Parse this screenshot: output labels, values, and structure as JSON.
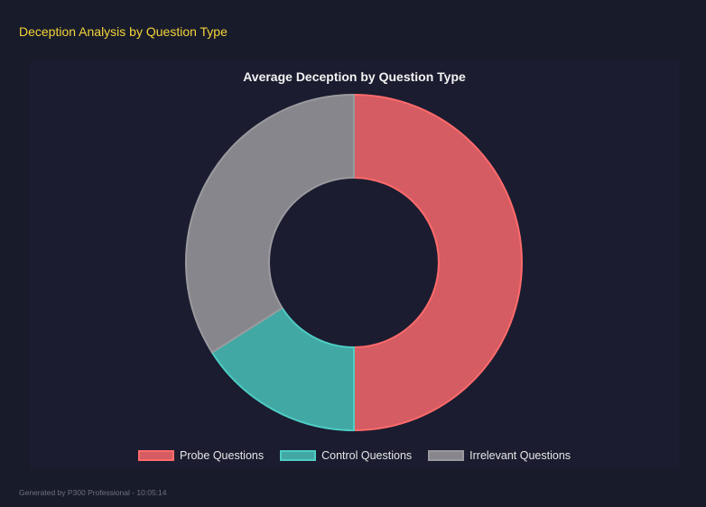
{
  "header": {
    "title": "Deception Analysis by Question Type"
  },
  "chart_data": {
    "type": "pie",
    "variant": "doughnut",
    "title": "Average Deception by Question Type",
    "categories": [
      "Probe Questions",
      "Control Questions",
      "Irrelevant Questions"
    ],
    "values": [
      50,
      16,
      34
    ],
    "colors": {
      "fill": [
        "#d45c62",
        "#41a8a4",
        "#87868c"
      ],
      "border": [
        "#ff6b6b",
        "#4ecdc4",
        "#9a9a9e"
      ]
    },
    "legend": "bottom"
  },
  "footer": {
    "text": "Generated by P300 Professional - 10:05:14"
  }
}
